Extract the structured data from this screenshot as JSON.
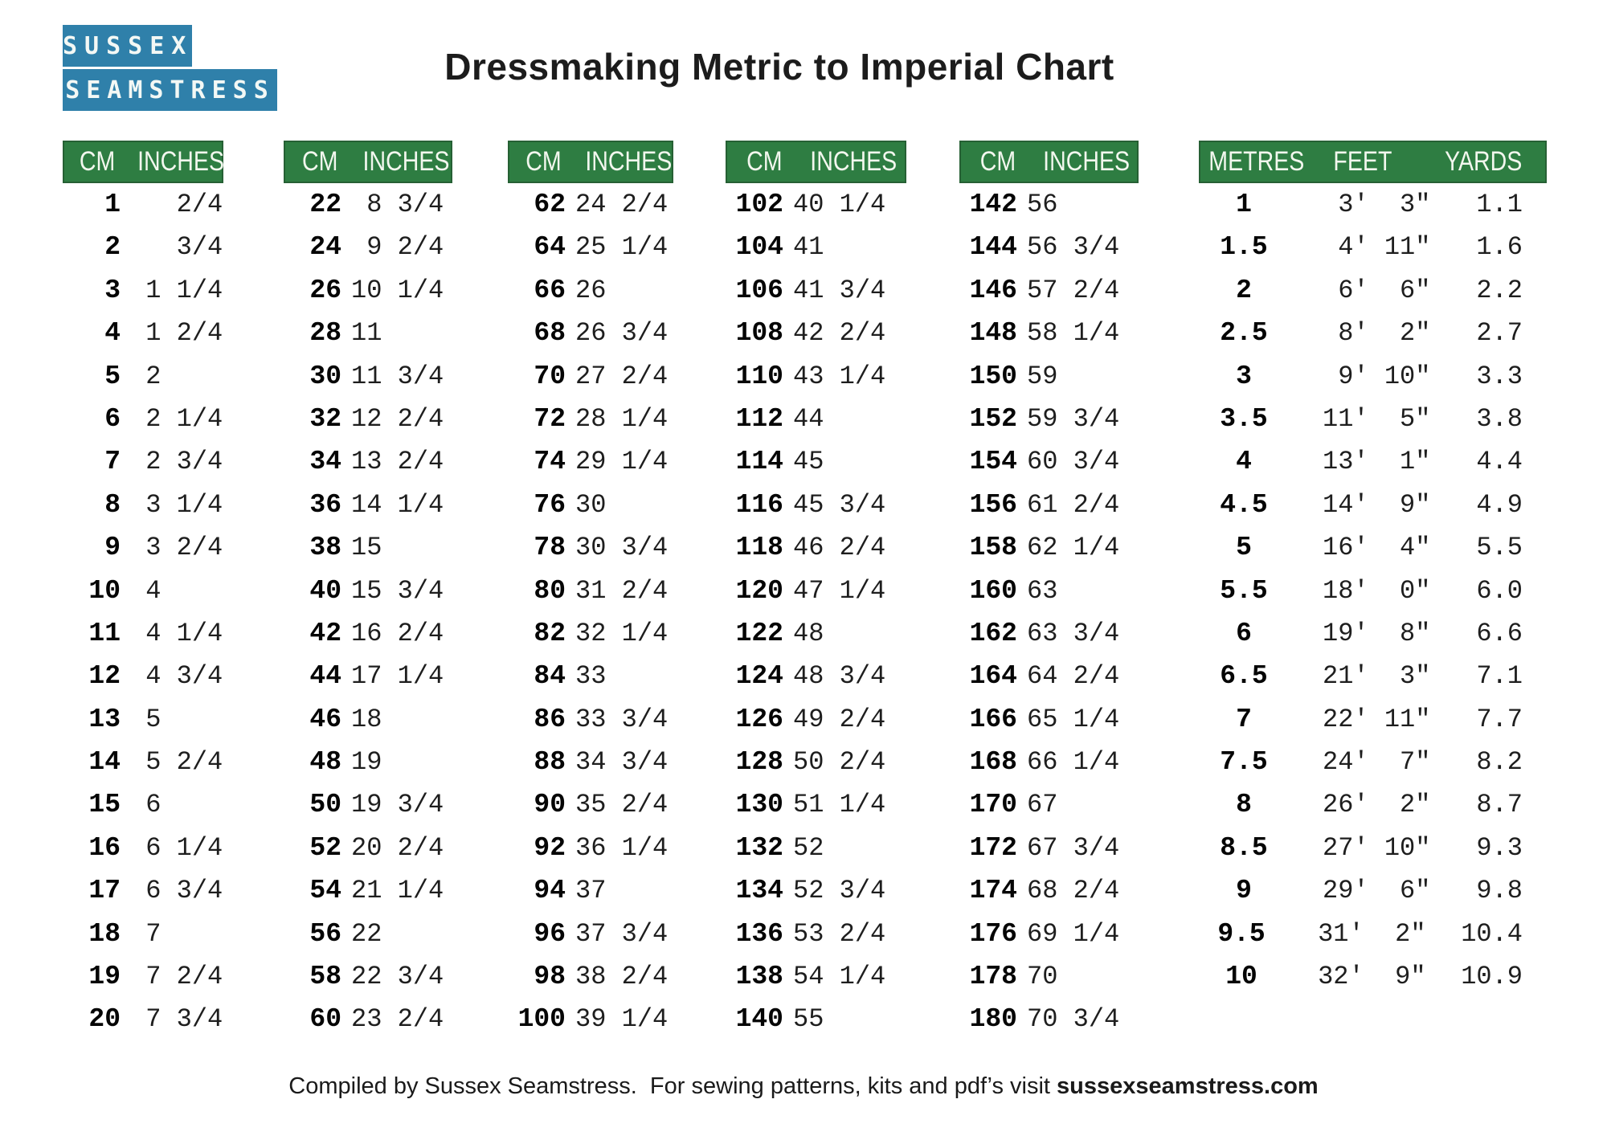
{
  "logo": {
    "line1": "SUSSEX",
    "line2": "SEAMSTRESS"
  },
  "title": "Dressmaking Metric to Imperial Chart",
  "colors": {
    "header_green": "#2e7d42",
    "logo_blue": "#2f80aa"
  },
  "cm_tables": [
    {
      "headers": [
        "CM",
        "INCHES"
      ],
      "rows": [
        {
          "cm": "1",
          "w": "",
          "f": "2/4"
        },
        {
          "cm": "2",
          "w": "",
          "f": "3/4"
        },
        {
          "cm": "3",
          "w": "1",
          "f": "1/4"
        },
        {
          "cm": "4",
          "w": "1",
          "f": "2/4"
        },
        {
          "cm": "5",
          "w": "2",
          "f": ""
        },
        {
          "cm": "6",
          "w": "2",
          "f": "1/4"
        },
        {
          "cm": "7",
          "w": "2",
          "f": "3/4"
        },
        {
          "cm": "8",
          "w": "3",
          "f": "1/4"
        },
        {
          "cm": "9",
          "w": "3",
          "f": "2/4"
        },
        {
          "cm": "10",
          "w": "4",
          "f": ""
        },
        {
          "cm": "11",
          "w": "4",
          "f": "1/4"
        },
        {
          "cm": "12",
          "w": "4",
          "f": "3/4"
        },
        {
          "cm": "13",
          "w": "5",
          "f": ""
        },
        {
          "cm": "14",
          "w": "5",
          "f": "2/4"
        },
        {
          "cm": "15",
          "w": "6",
          "f": ""
        },
        {
          "cm": "16",
          "w": "6",
          "f": "1/4"
        },
        {
          "cm": "17",
          "w": "6",
          "f": "3/4"
        },
        {
          "cm": "18",
          "w": "7",
          "f": ""
        },
        {
          "cm": "19",
          "w": "7",
          "f": "2/4"
        },
        {
          "cm": "20",
          "w": "7",
          "f": "3/4"
        }
      ]
    },
    {
      "headers": [
        "CM",
        "INCHES"
      ],
      "rows": [
        {
          "cm": "22",
          "w": "8",
          "f": "3/4"
        },
        {
          "cm": "24",
          "w": "9",
          "f": "2/4"
        },
        {
          "cm": "26",
          "w": "10",
          "f": "1/4"
        },
        {
          "cm": "28",
          "w": "11",
          "f": ""
        },
        {
          "cm": "30",
          "w": "11",
          "f": "3/4"
        },
        {
          "cm": "32",
          "w": "12",
          "f": "2/4"
        },
        {
          "cm": "34",
          "w": "13",
          "f": "2/4"
        },
        {
          "cm": "36",
          "w": "14",
          "f": "1/4"
        },
        {
          "cm": "38",
          "w": "15",
          "f": ""
        },
        {
          "cm": "40",
          "w": "15",
          "f": "3/4"
        },
        {
          "cm": "42",
          "w": "16",
          "f": "2/4"
        },
        {
          "cm": "44",
          "w": "17",
          "f": "1/4"
        },
        {
          "cm": "46",
          "w": "18",
          "f": ""
        },
        {
          "cm": "48",
          "w": "19",
          "f": ""
        },
        {
          "cm": "50",
          "w": "19",
          "f": "3/4"
        },
        {
          "cm": "52",
          "w": "20",
          "f": "2/4"
        },
        {
          "cm": "54",
          "w": "21",
          "f": "1/4"
        },
        {
          "cm": "56",
          "w": "22",
          "f": ""
        },
        {
          "cm": "58",
          "w": "22",
          "f": "3/4"
        },
        {
          "cm": "60",
          "w": "23",
          "f": "2/4"
        }
      ]
    },
    {
      "headers": [
        "CM",
        "INCHES"
      ],
      "rows": [
        {
          "cm": "62",
          "w": "24",
          "f": "2/4"
        },
        {
          "cm": "64",
          "w": "25",
          "f": "1/4"
        },
        {
          "cm": "66",
          "w": "26",
          "f": ""
        },
        {
          "cm": "68",
          "w": "26",
          "f": "3/4"
        },
        {
          "cm": "70",
          "w": "27",
          "f": "2/4"
        },
        {
          "cm": "72",
          "w": "28",
          "f": "1/4"
        },
        {
          "cm": "74",
          "w": "29",
          "f": "1/4"
        },
        {
          "cm": "76",
          "w": "30",
          "f": ""
        },
        {
          "cm": "78",
          "w": "30",
          "f": "3/4"
        },
        {
          "cm": "80",
          "w": "31",
          "f": "2/4"
        },
        {
          "cm": "82",
          "w": "32",
          "f": "1/4"
        },
        {
          "cm": "84",
          "w": "33",
          "f": ""
        },
        {
          "cm": "86",
          "w": "33",
          "f": "3/4"
        },
        {
          "cm": "88",
          "w": "34",
          "f": "3/4"
        },
        {
          "cm": "90",
          "w": "35",
          "f": "2/4"
        },
        {
          "cm": "92",
          "w": "36",
          "f": "1/4"
        },
        {
          "cm": "94",
          "w": "37",
          "f": ""
        },
        {
          "cm": "96",
          "w": "37",
          "f": "3/4"
        },
        {
          "cm": "98",
          "w": "38",
          "f": "2/4"
        },
        {
          "cm": "100",
          "w": "39",
          "f": "1/4"
        }
      ]
    },
    {
      "headers": [
        "CM",
        "INCHES"
      ],
      "rows": [
        {
          "cm": "102",
          "w": "40",
          "f": "1/4"
        },
        {
          "cm": "104",
          "w": "41",
          "f": ""
        },
        {
          "cm": "106",
          "w": "41",
          "f": "3/4"
        },
        {
          "cm": "108",
          "w": "42",
          "f": "2/4"
        },
        {
          "cm": "110",
          "w": "43",
          "f": "1/4"
        },
        {
          "cm": "112",
          "w": "44",
          "f": ""
        },
        {
          "cm": "114",
          "w": "45",
          "f": ""
        },
        {
          "cm": "116",
          "w": "45",
          "f": "3/4"
        },
        {
          "cm": "118",
          "w": "46",
          "f": "2/4"
        },
        {
          "cm": "120",
          "w": "47",
          "f": "1/4"
        },
        {
          "cm": "122",
          "w": "48",
          "f": ""
        },
        {
          "cm": "124",
          "w": "48",
          "f": "3/4"
        },
        {
          "cm": "126",
          "w": "49",
          "f": "2/4"
        },
        {
          "cm": "128",
          "w": "50",
          "f": "2/4"
        },
        {
          "cm": "130",
          "w": "51",
          "f": "1/4"
        },
        {
          "cm": "132",
          "w": "52",
          "f": ""
        },
        {
          "cm": "134",
          "w": "52",
          "f": "3/4"
        },
        {
          "cm": "136",
          "w": "53",
          "f": "2/4"
        },
        {
          "cm": "138",
          "w": "54",
          "f": "1/4"
        },
        {
          "cm": "140",
          "w": "55",
          "f": ""
        }
      ]
    },
    {
      "headers": [
        "CM",
        "INCHES"
      ],
      "rows": [
        {
          "cm": "142",
          "w": "56",
          "f": ""
        },
        {
          "cm": "144",
          "w": "56",
          "f": "3/4"
        },
        {
          "cm": "146",
          "w": "57",
          "f": "2/4"
        },
        {
          "cm": "148",
          "w": "58",
          "f": "1/4"
        },
        {
          "cm": "150",
          "w": "59",
          "f": ""
        },
        {
          "cm": "152",
          "w": "59",
          "f": "3/4"
        },
        {
          "cm": "154",
          "w": "60",
          "f": "3/4"
        },
        {
          "cm": "156",
          "w": "61",
          "f": "2/4"
        },
        {
          "cm": "158",
          "w": "62",
          "f": "1/4"
        },
        {
          "cm": "160",
          "w": "63",
          "f": ""
        },
        {
          "cm": "162",
          "w": "63",
          "f": "3/4"
        },
        {
          "cm": "164",
          "w": "64",
          "f": "2/4"
        },
        {
          "cm": "166",
          "w": "65",
          "f": "1/4"
        },
        {
          "cm": "168",
          "w": "66",
          "f": "1/4"
        },
        {
          "cm": "170",
          "w": "67",
          "f": ""
        },
        {
          "cm": "172",
          "w": "67",
          "f": "3/4"
        },
        {
          "cm": "174",
          "w": "68",
          "f": "2/4"
        },
        {
          "cm": "176",
          "w": "69",
          "f": "1/4"
        },
        {
          "cm": "178",
          "w": "70",
          "f": ""
        },
        {
          "cm": "180",
          "w": "70",
          "f": "3/4"
        }
      ]
    }
  ],
  "metre_table": {
    "headers": [
      "METRES",
      "FEET",
      "YARDS"
    ],
    "rows": [
      {
        "m": "1",
        "ft": "3",
        "in": "3",
        "yd": "1.1"
      },
      {
        "m": "1.5",
        "ft": "4",
        "in": "11",
        "yd": "1.6"
      },
      {
        "m": "2",
        "ft": "6",
        "in": "6",
        "yd": "2.2"
      },
      {
        "m": "2.5",
        "ft": "8",
        "in": "2",
        "yd": "2.7"
      },
      {
        "m": "3",
        "ft": "9",
        "in": "10",
        "yd": "3.3"
      },
      {
        "m": "3.5",
        "ft": "11",
        "in": "5",
        "yd": "3.8"
      },
      {
        "m": "4",
        "ft": "13",
        "in": "1",
        "yd": "4.4"
      },
      {
        "m": "4.5",
        "ft": "14",
        "in": "9",
        "yd": "4.9"
      },
      {
        "m": "5",
        "ft": "16",
        "in": "4",
        "yd": "5.5"
      },
      {
        "m": "5.5",
        "ft": "18",
        "in": "0",
        "yd": "6.0"
      },
      {
        "m": "6",
        "ft": "19",
        "in": "8",
        "yd": "6.6"
      },
      {
        "m": "6.5",
        "ft": "21",
        "in": "3",
        "yd": "7.1"
      },
      {
        "m": "7",
        "ft": "22",
        "in": "11",
        "yd": "7.7"
      },
      {
        "m": "7.5",
        "ft": "24",
        "in": "7",
        "yd": "8.2"
      },
      {
        "m": "8",
        "ft": "26",
        "in": "2",
        "yd": "8.7"
      },
      {
        "m": "8.5",
        "ft": "27",
        "in": "10",
        "yd": "9.3"
      },
      {
        "m": "9",
        "ft": "29",
        "in": "6",
        "yd": "9.8"
      },
      {
        "m": "9.5",
        "ft": "31",
        "in": "2",
        "yd": "10.4"
      },
      {
        "m": "10",
        "ft": "32",
        "in": "9",
        "yd": "10.9"
      }
    ]
  },
  "footer": {
    "text": "Compiled by Sussex Seamstress.  For sewing patterns, kits and pdf’s visit ",
    "link": "sussexseamstress.com"
  }
}
